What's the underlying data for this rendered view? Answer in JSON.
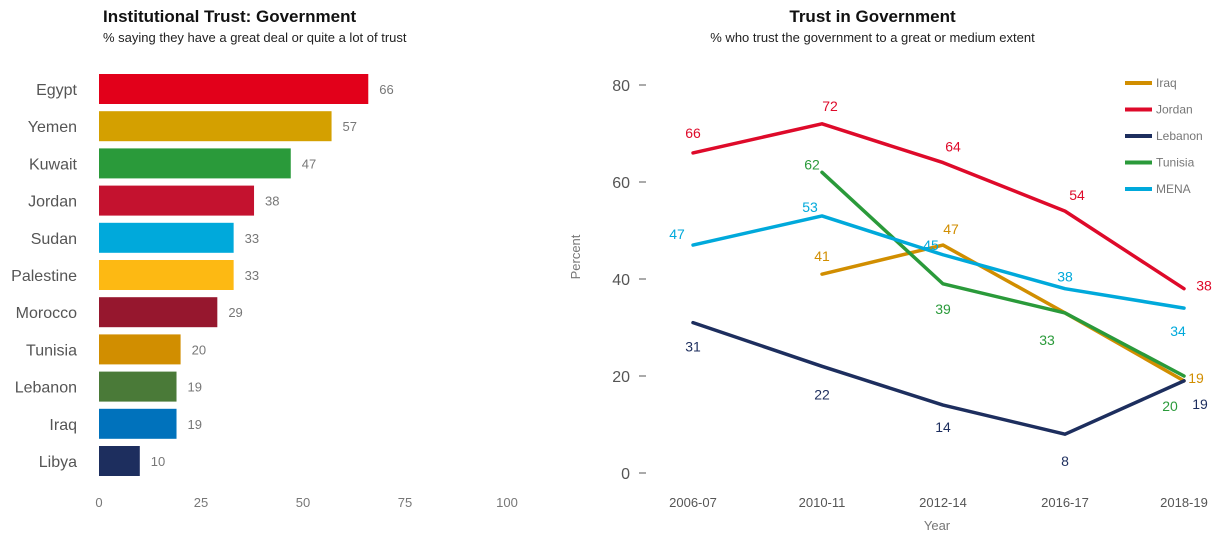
{
  "chart_data": [
    {
      "type": "bar",
      "orientation": "horizontal",
      "title": "Institutional Trust: Government",
      "subtitle": "% saying they have a great deal or quite a lot of trust",
      "categories": [
        "Egypt",
        "Yemen",
        "Kuwait",
        "Jordan",
        "Sudan",
        "Palestine",
        "Morocco",
        "Tunisia",
        "Lebanon",
        "Iraq",
        "Libya"
      ],
      "values": [
        66,
        57,
        47,
        38,
        33,
        33,
        29,
        20,
        19,
        19,
        10
      ],
      "colors": [
        "#E2001A",
        "#D4A000",
        "#2A9A3A",
        "#C4122F",
        "#00A9DB",
        "#FDB913",
        "#96172E",
        "#D18E00",
        "#4A7A38",
        "#0072BC",
        "#1D2E5E"
      ],
      "xticks": [
        "0",
        "25",
        "50",
        "75",
        "100"
      ],
      "xlim": [
        0,
        100
      ],
      "grid": false,
      "legend": "none"
    },
    {
      "type": "line",
      "title": "Trust in Government",
      "subtitle": "% who trust the government to a great or medium extent",
      "xlabel": "Year",
      "ylabel": "Percent",
      "x": [
        "2006-07",
        "2010-11",
        "2012-14",
        "2016-17",
        "2018-19"
      ],
      "yticks": [
        "0",
        "20",
        "40",
        "60",
        "80"
      ],
      "ylim": [
        0,
        85
      ],
      "legend": "top-right",
      "grid": false,
      "series": [
        {
          "name": "Iraq",
          "color": "#D18E00",
          "values": [
            null,
            41,
            47,
            33,
            19
          ]
        },
        {
          "name": "Jordan",
          "color": "#DE0A2A",
          "values": [
            66,
            72,
            64,
            54,
            38
          ]
        },
        {
          "name": "Lebanon",
          "color": "#1D2E5E",
          "values": [
            31,
            22,
            14,
            8,
            19
          ]
        },
        {
          "name": "Tunisia",
          "color": "#2A9A3A",
          "values": [
            null,
            62,
            39,
            33,
            20
          ]
        },
        {
          "name": "MENA",
          "color": "#00A9DB",
          "values": [
            47,
            53,
            45,
            38,
            34
          ]
        }
      ]
    }
  ]
}
